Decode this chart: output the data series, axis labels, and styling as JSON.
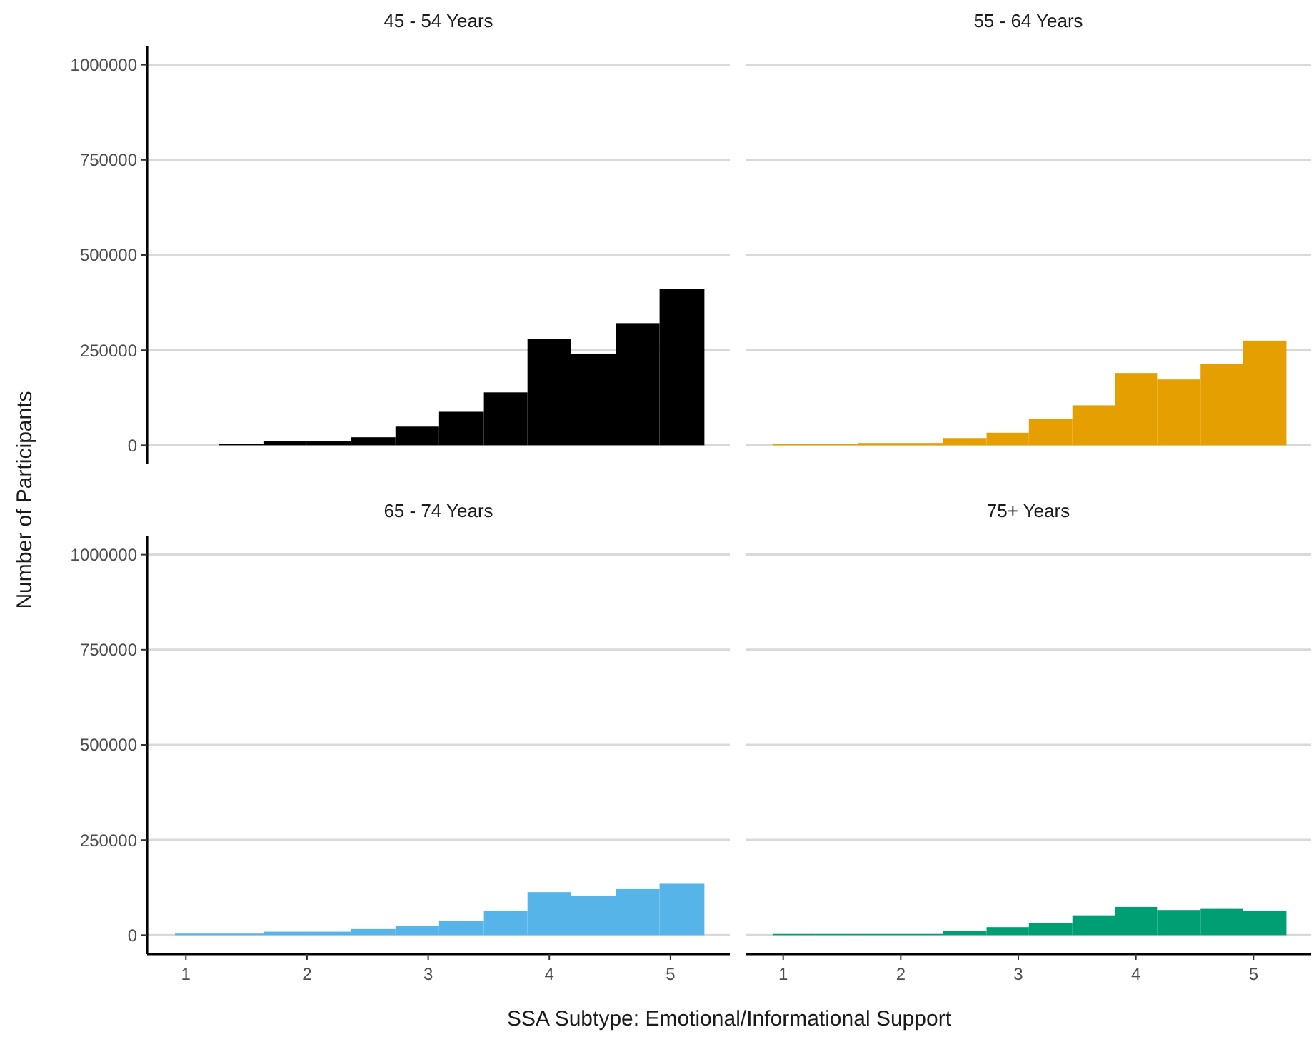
{
  "chart_data": [
    {
      "type": "histogram",
      "title": "45 - 54 Years",
      "ylabel": "Number of Participants",
      "bins": [
        1.27,
        1.64,
        2.0,
        2.36,
        2.73,
        3.09,
        3.46,
        3.82,
        4.18,
        4.55,
        4.91,
        5.28
      ],
      "values": [
        3000,
        10000,
        10000,
        21000,
        49000,
        88000,
        139000,
        280000,
        241000,
        321000,
        410000
      ],
      "color": "#000000",
      "xlim": [
        0.68,
        5.49
      ],
      "ylim": [
        -50000,
        1050000
      ],
      "yticks": [
        0,
        250000,
        500000,
        750000,
        1000000
      ],
      "grid": "y",
      "tick_labels": "y"
    },
    {
      "type": "histogram",
      "title": "55 - 64 Years",
      "bins": [
        0.91,
        1.27,
        1.64,
        2.0,
        2.36,
        2.73,
        3.09,
        3.46,
        3.82,
        4.18,
        4.55,
        4.91,
        5.28
      ],
      "values": [
        3000,
        3000,
        6000,
        6000,
        19000,
        33000,
        70000,
        105000,
        190000,
        173000,
        213000,
        275000
      ],
      "color": "#e69f00",
      "xlim": [
        0.68,
        5.49
      ],
      "yticks": [
        0,
        250000,
        500000,
        750000,
        1000000
      ],
      "grid": "y",
      "tick_labels": false
    },
    {
      "type": "histogram",
      "title": "65 - 74 Years",
      "xlabel": "SSA Subtype: Emotional/Informational Support",
      "bins": [
        0.91,
        1.27,
        1.64,
        2.0,
        2.36,
        2.73,
        3.09,
        3.46,
        3.82,
        4.18,
        4.55,
        4.91,
        5.28
      ],
      "values": [
        4000,
        4000,
        9000,
        9000,
        16000,
        25000,
        38000,
        64000,
        113000,
        104000,
        121000,
        135000
      ],
      "color": "#56b4e9",
      "xlim": [
        0.68,
        5.49
      ],
      "ylim": [
        -50000,
        1050000
      ],
      "xticks": [
        1,
        2,
        3,
        4,
        5
      ],
      "yticks": [
        0,
        250000,
        500000,
        750000,
        1000000
      ],
      "grid": "y"
    },
    {
      "type": "histogram",
      "title": "75+ Years",
      "bins": [
        0.91,
        1.27,
        1.64,
        2.0,
        2.36,
        2.73,
        3.09,
        3.46,
        3.82,
        4.18,
        4.55,
        4.91,
        5.28
      ],
      "values": [
        3000,
        3000,
        3000,
        3000,
        11000,
        21000,
        31000,
        52000,
        74000,
        66000,
        69000,
        64000
      ],
      "color": "#009e73",
      "xlim": [
        0.68,
        5.49
      ],
      "xticks": [
        1,
        2,
        3,
        4,
        5
      ],
      "yticks": [
        0,
        250000,
        500000,
        750000,
        1000000
      ],
      "grid": "y",
      "tick_labels": "x"
    }
  ]
}
